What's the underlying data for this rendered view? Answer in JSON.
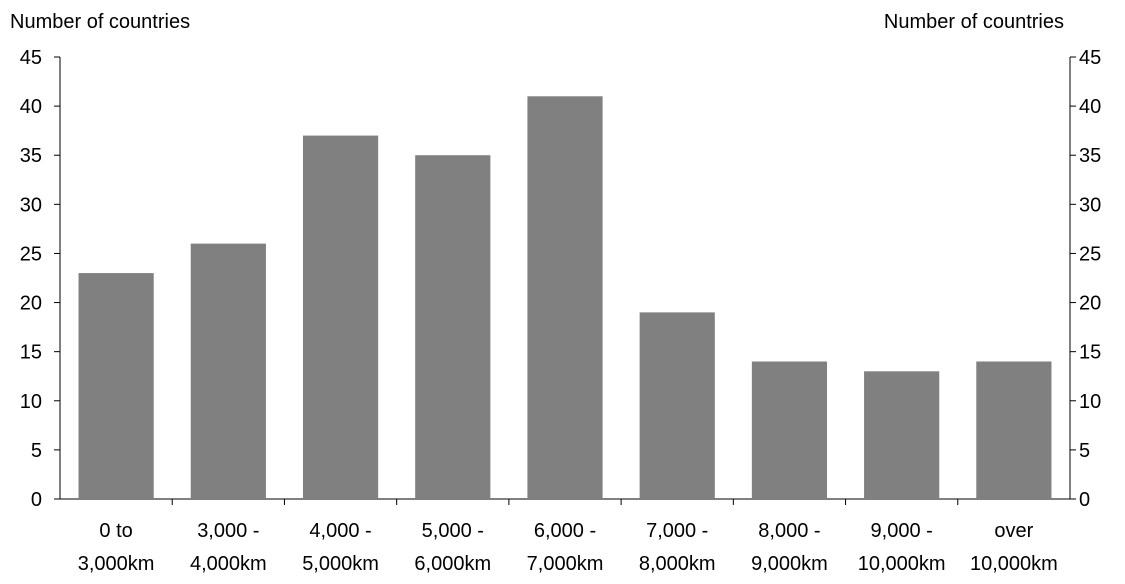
{
  "chart_data": {
    "type": "bar",
    "ylabel_left": "Number of countries",
    "ylabel_right": "Number of countries",
    "ylim": [
      0,
      45
    ],
    "yticks": [
      0,
      5,
      10,
      15,
      20,
      25,
      30,
      35,
      40,
      45
    ],
    "categories": [
      [
        "0 to",
        "3,000km"
      ],
      [
        "3,000 -",
        "4,000km"
      ],
      [
        "4,000 -",
        "5,000km"
      ],
      [
        "5,000 -",
        "6,000km"
      ],
      [
        "6,000 -",
        "7,000km"
      ],
      [
        "7,000 -",
        "8,000km"
      ],
      [
        "8,000 -",
        "9,000km"
      ],
      [
        "9,000 -",
        "10,000km"
      ],
      [
        "over",
        "10,000km"
      ]
    ],
    "values": [
      23,
      26,
      37,
      35,
      41,
      19,
      14,
      13,
      14
    ],
    "bar_color": "#808080",
    "grid": false,
    "legend": "none"
  }
}
